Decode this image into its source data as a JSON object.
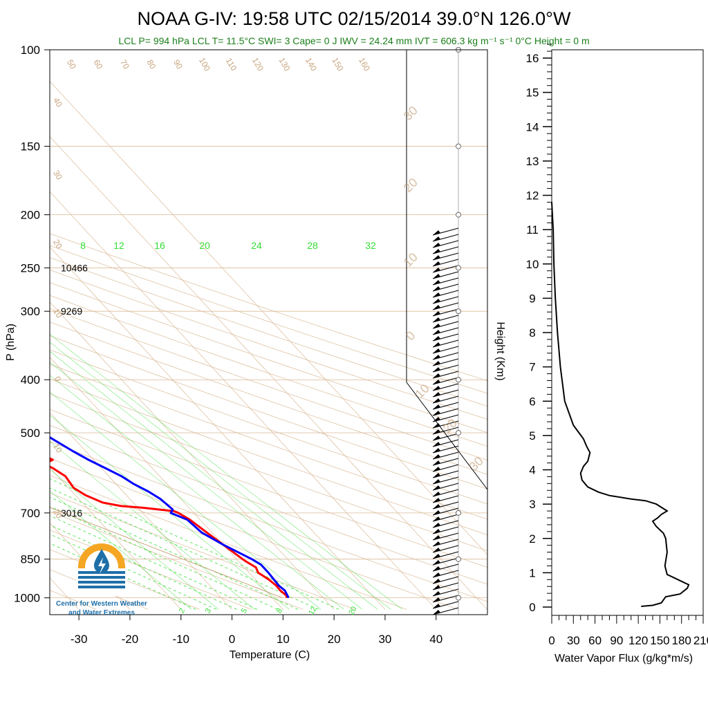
{
  "title": "NOAA G-IV: 19:58 UTC 02/15/2014  39.0°N 126.0°W",
  "subtitle": "LCL P= 994 hPa  LCL T= 11.5°C  SWI= 3  Cape= 0 J  IWV = 24.24 mm  IVT = 606.3 kg m⁻¹ s⁻¹  0°C Height = 0 m",
  "logo": {
    "line1": "Center for Western Weather",
    "line2": "and Water Extremes"
  },
  "colors": {
    "temperature": "#ff0000",
    "dewpoint": "#0000ff",
    "isotherm": "#d9b996",
    "mixing_ratio": "#33dd33",
    "subtitle": "#1a7f1a",
    "logo_orange": "#f5a623",
    "logo_blue": "#1e6fa8"
  },
  "chart_data": [
    {
      "type": "line",
      "name": "skew-t",
      "xlabel": "Temperature (C)",
      "ylabel": "P (hPa)",
      "xlim": [
        -34,
        52
      ],
      "ylim": [
        1050,
        100
      ],
      "y_scale": "log",
      "x_ticks": [
        "-30",
        "-20",
        "-10",
        "0",
        "10",
        "20",
        "30",
        "40"
      ],
      "y_ticks": [
        "100",
        "150",
        "200",
        "250",
        "300",
        "400",
        "500",
        "700",
        "850",
        "1000"
      ],
      "height_labels": [
        {
          "p": 250,
          "text": "10466"
        },
        {
          "p": 300,
          "text": "9269"
        },
        {
          "p": 700,
          "text": "3016"
        }
      ],
      "isotherm_labels": [
        "50",
        "60",
        "70",
        "80",
        "90",
        "100",
        "110",
        "120",
        "130",
        "140",
        "150",
        "160",
        "40",
        "30",
        "20",
        "10",
        "0",
        "10",
        "20"
      ],
      "adiabat_labels": [
        "30",
        "20",
        "10",
        "0",
        "10",
        "20",
        "30"
      ],
      "mixing_ratio_labels_top": [
        "8",
        "12",
        "16",
        "20",
        "24",
        "28",
        "32"
      ],
      "mixing_ratio_labels_bottom": [
        "2",
        "3",
        "5",
        "8",
        "12",
        "20"
      ],
      "series": [
        {
          "name": "Temperature",
          "values": [
            [
              1000,
              12.8
            ],
            [
              990,
              13.2
            ],
            [
              970,
              12.9
            ],
            [
              950,
              13.0
            ],
            [
              925,
              12.6
            ],
            [
              900,
              11.8
            ],
            [
              880,
              12.3
            ],
            [
              860,
              11.5
            ],
            [
              850,
              11.2
            ],
            [
              800,
              10.0
            ],
            [
              760,
              9.0
            ],
            [
              720,
              8.0
            ],
            [
              700,
              7.0
            ],
            [
              695,
              6.5
            ],
            [
              685,
              1.0
            ],
            [
              680,
              -3.0
            ],
            [
              670,
              -6.0
            ],
            [
              650,
              -8.0
            ],
            [
              630,
              -9.0
            ],
            [
              600,
              -8.5
            ],
            [
              580,
              -9.5
            ],
            [
              570,
              -10.5
            ],
            [
              560,
              -8.0
            ],
            [
              550,
              -9.0
            ],
            [
              540,
              -9.0
            ],
            [
              520,
              -10.0
            ],
            [
              510,
              -12.0
            ],
            [
              500,
              -14.0
            ],
            [
              480,
              -17.0
            ],
            [
              450,
              -20.0
            ],
            [
              420,
              -23.0
            ],
            [
              400,
              -25.0
            ],
            [
              380,
              -28.0
            ],
            [
              360,
              -31.0
            ],
            [
              340,
              -33.0
            ],
            [
              330,
              -35.0
            ],
            [
              310,
              -36.0
            ],
            [
              300,
              -35.0
            ],
            [
              290,
              -38.0
            ],
            [
              270,
              -42.0
            ],
            [
              250,
              -48.0
            ],
            [
              240,
              -52.0
            ],
            [
              230,
              -55.0
            ],
            [
              220,
              -57.0
            ],
            [
              210,
              -58.0
            ],
            [
              200,
              -60.0
            ]
          ]
        },
        {
          "name": "Dewpoint",
          "values": [
            [
              1000,
              13.2
            ],
            [
              970,
              13.8
            ],
            [
              950,
              13.5
            ],
            [
              900,
              13.8
            ],
            [
              870,
              13.8
            ],
            [
              850,
              13.0
            ],
            [
              800,
              10.0
            ],
            [
              760,
              8.0
            ],
            [
              720,
              7.5
            ],
            [
              705,
              6.0
            ],
            [
              700,
              5.5
            ],
            [
              690,
              6.5
            ],
            [
              660,
              6.0
            ],
            [
              640,
              5.0
            ],
            [
              620,
              3.5
            ],
            [
              600,
              2.5
            ],
            [
              580,
              0.8
            ],
            [
              560,
              -1.0
            ],
            [
              540,
              -2.5
            ],
            [
              510,
              -4.5
            ],
            [
              480,
              -6.5
            ],
            [
              450,
              -9.0
            ],
            [
              420,
              -10.5
            ],
            [
              400,
              -12.0
            ],
            [
              380,
              -13.0
            ],
            [
              360,
              -15.0
            ],
            [
              340,
              -16.5
            ],
            [
              320,
              -19.0
            ],
            [
              300,
              -22.0
            ],
            [
              280,
              -26.0
            ],
            [
              260,
              -30.0
            ],
            [
              240,
              -34.0
            ],
            [
              225,
              -36.0
            ],
            [
              220,
              -36.5
            ],
            [
              210,
              -35.0
            ],
            [
              200,
              -37.0
            ]
          ]
        }
      ]
    },
    {
      "type": "line",
      "name": "water-vapor-flux",
      "xlabel": "Water Vapor Flux (g/kg*m/s)",
      "ylabel": "Height (Km)",
      "xlim": [
        0,
        210
      ],
      "ylim": [
        0,
        16.5
      ],
      "x_ticks": [
        "0",
        "30",
        "60",
        "90",
        "120",
        "150",
        "180",
        "210"
      ],
      "y_ticks": [
        "0",
        "1",
        "2",
        "3",
        "4",
        "5",
        "6",
        "7",
        "8",
        "9",
        "10",
        "11",
        "12",
        "13",
        "14",
        "15",
        "16"
      ],
      "values": [
        [
          124,
          0.02
        ],
        [
          140,
          0.05
        ],
        [
          152,
          0.12
        ],
        [
          158,
          0.3
        ],
        [
          178,
          0.38
        ],
        [
          188,
          0.55
        ],
        [
          190,
          0.65
        ],
        [
          180,
          0.75
        ],
        [
          170,
          0.85
        ],
        [
          160,
          0.95
        ],
        [
          157,
          1.2
        ],
        [
          160,
          1.6
        ],
        [
          158,
          2.0
        ],
        [
          155,
          2.15
        ],
        [
          145,
          2.35
        ],
        [
          140,
          2.5
        ],
        [
          147,
          2.6
        ],
        [
          152,
          2.7
        ],
        [
          160,
          2.8
        ],
        [
          145,
          3.0
        ],
        [
          130,
          3.1
        ],
        [
          110,
          3.15
        ],
        [
          80,
          3.25
        ],
        [
          65,
          3.35
        ],
        [
          50,
          3.5
        ],
        [
          42,
          3.7
        ],
        [
          40,
          3.9
        ],
        [
          44,
          4.1
        ],
        [
          50,
          4.25
        ],
        [
          53,
          4.5
        ],
        [
          48,
          4.7
        ],
        [
          44,
          4.9
        ],
        [
          30,
          5.3
        ],
        [
          18,
          6.0
        ],
        [
          12,
          7.0
        ],
        [
          8,
          8.0
        ],
        [
          5,
          9.0
        ],
        [
          3,
          10.0
        ],
        [
          2,
          11.0
        ],
        [
          0,
          11.8
        ]
      ]
    }
  ]
}
